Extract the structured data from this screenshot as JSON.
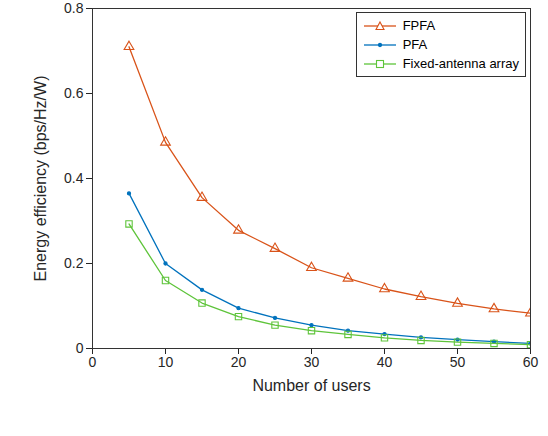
{
  "chart_data": {
    "type": "line",
    "x_label": "Number of users",
    "y_label": "Energy efficiency (bps/Hz/W)",
    "x": [
      5,
      10,
      15,
      20,
      25,
      30,
      35,
      40,
      45,
      50,
      55,
      60
    ],
    "series": [
      {
        "name": "FPFA",
        "color": "#d95319",
        "marker": "triangle",
        "values": [
          0.71,
          0.485,
          0.355,
          0.278,
          0.235,
          0.19,
          0.165,
          0.14,
          0.122,
          0.106,
          0.093,
          0.083
        ]
      },
      {
        "name": "PFA",
        "color": "#0072bd",
        "marker": "point",
        "values": [
          0.365,
          0.2,
          0.138,
          0.095,
          0.072,
          0.055,
          0.042,
          0.034,
          0.026,
          0.021,
          0.016,
          0.012
        ]
      },
      {
        "name": "Fixed-antenna array",
        "color": "#5ec43a",
        "marker": "square",
        "values": [
          0.293,
          0.16,
          0.107,
          0.075,
          0.055,
          0.042,
          0.033,
          0.025,
          0.019,
          0.015,
          0.012,
          0.009
        ]
      }
    ],
    "xlim": [
      0,
      60
    ],
    "xticks": [
      0,
      10,
      20,
      30,
      40,
      50,
      60
    ],
    "ylim": [
      0,
      0.8
    ],
    "yticks": [
      0,
      0.2,
      0.4,
      0.6,
      0.8
    ],
    "grid": false,
    "legend": "northeast"
  }
}
